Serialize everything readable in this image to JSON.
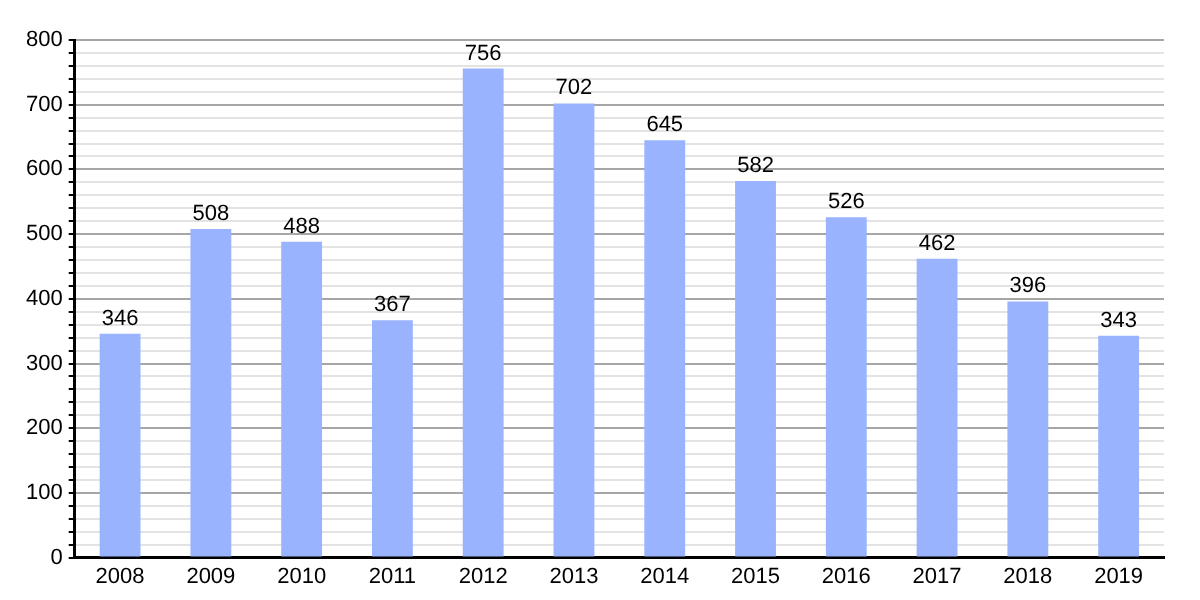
{
  "chart_data": {
    "type": "bar",
    "categories": [
      "2008",
      "2009",
      "2010",
      "2011",
      "2012",
      "2013",
      "2014",
      "2015",
      "2016",
      "2017",
      "2018",
      "2019"
    ],
    "values": [
      346,
      508,
      488,
      367,
      756,
      702,
      645,
      582,
      526,
      462,
      396,
      343
    ],
    "color": "#99b3ff",
    "data_labels": true,
    "grid": "y",
    "ylim": [
      0,
      800
    ],
    "yticks": [
      0,
      {
        "value": 20,
        "label": null
      },
      {
        "value": 40,
        "label": null
      },
      {
        "value": 60,
        "label": null
      },
      {
        "value": 80,
        "label": null
      },
      100,
      {
        "value": 120,
        "label": null
      },
      {
        "value": 140,
        "label": null
      },
      {
        "value": 160,
        "label": null
      },
      {
        "value": 180,
        "label": null
      },
      200,
      {
        "value": 220,
        "label": null
      },
      {
        "value": 240,
        "label": null
      },
      {
        "value": 260,
        "label": null
      },
      {
        "value": 280,
        "label": null
      },
      300,
      {
        "value": 320,
        "label": null
      },
      {
        "value": 340,
        "label": null
      },
      {
        "value": 360,
        "label": null
      },
      {
        "value": 380,
        "label": null
      },
      400,
      {
        "value": 420,
        "label": null
      },
      {
        "value": 440,
        "label": null
      },
      {
        "value": 460,
        "label": null
      },
      {
        "value": 480,
        "label": null
      },
      500,
      {
        "value": 520,
        "label": null
      },
      {
        "value": 540,
        "label": null
      },
      {
        "value": 560,
        "label": null
      },
      {
        "value": 580,
        "label": null
      },
      600,
      {
        "value": 620,
        "label": null
      },
      {
        "value": 640,
        "label": null
      },
      {
        "value": 660,
        "label": null
      },
      {
        "value": 680,
        "label": null
      },
      700,
      {
        "value": 720,
        "label": null
      },
      {
        "value": 740,
        "label": null
      },
      {
        "value": 760,
        "label": null
      },
      {
        "value": 780,
        "label": null
      },
      800
    ]
  }
}
